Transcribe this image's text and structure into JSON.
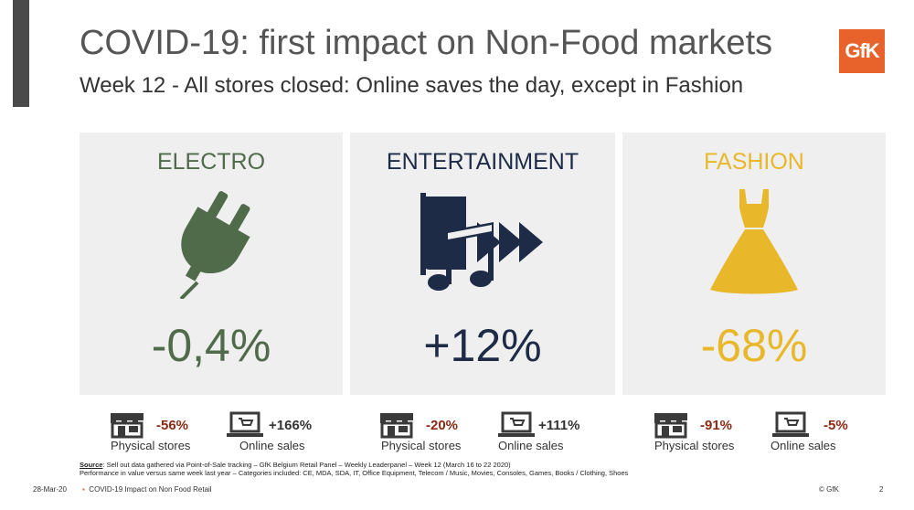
{
  "title": "COVID-19: first impact on Non-Food markets",
  "subtitle": "Week 12 - All stores closed: Online saves the day, except in Fashion",
  "logo_text": "GfK",
  "colors": {
    "electro": "#4f6b4a",
    "entertainment": "#1e2b47",
    "fashion": "#e8b72a",
    "negative": "#8a2a14",
    "brand": "#e8622c"
  },
  "panels": [
    {
      "category": "ELECTRO",
      "change": "-0,4%",
      "icon": "plug-icon",
      "physical": {
        "value": "-56%",
        "label": "Physical stores"
      },
      "online": {
        "value": "+166%",
        "label": "Online sales"
      }
    },
    {
      "category": "ENTERTAINMENT",
      "change": "+12%",
      "icon": "book-music-play-icon",
      "physical": {
        "value": "-20%",
        "label": "Physical stores"
      },
      "online": {
        "value": "+111%",
        "label": "Online sales"
      }
    },
    {
      "category": "FASHION",
      "change": "-68%",
      "icon": "dress-icon",
      "physical": {
        "value": "-91%",
        "label": "Physical stores"
      },
      "online": {
        "value": "-5%",
        "label": "Online sales"
      }
    }
  ],
  "source": {
    "label": "Source",
    "line1": ": Sell out data gathered via Point-of-Sale tracking – GfK Belgium Retail Panel – Weekly Leaderpanel – Week 12 (March 16 to 22 2020)",
    "line2": "Performance in value versus same week last year – Categories included: CE, MDA, SDA, IT, Office Equipment, Telecom / Music, Movies, Consoles, Games, Books / Clothing, Shoes"
  },
  "footer": {
    "date": "28-Mar-20",
    "doc": "COVID-19 Impact on Non Food Retail",
    "copyright": "© GfK",
    "page": "2"
  }
}
